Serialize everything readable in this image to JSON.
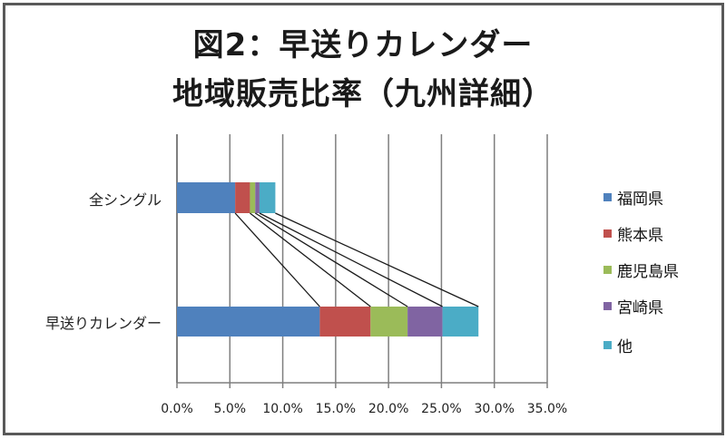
{
  "chart_data": {
    "type": "bar",
    "orientation": "horizontal",
    "stacked": true,
    "series_lines": true,
    "title": "図2：早送りカレンダー\n地域販売比率（九州詳細）",
    "title_lines": [
      "図2：早送りカレンダー",
      "地域販売比率（九州詳細）"
    ],
    "categories": [
      "全シングル",
      "早送りカレンダー"
    ],
    "series": [
      {
        "name": "福岡県",
        "color": "#4F81BD",
        "values": [
          5.5,
          13.5
        ]
      },
      {
        "name": "熊本県",
        "color": "#C0504D",
        "values": [
          1.4,
          4.8
        ]
      },
      {
        "name": "鹿児島県",
        "color": "#9BBB59",
        "values": [
          0.5,
          3.5
        ]
      },
      {
        "name": "宮崎県",
        "color": "#8064A2",
        "values": [
          0.4,
          3.3
        ]
      },
      {
        "name": "他",
        "color": "#4BACC6",
        "values": [
          1.5,
          3.4
        ]
      }
    ],
    "xlabel": "",
    "ylabel": "",
    "xlim": [
      0,
      35
    ],
    "x_ticks": [
      "0.0%",
      "5.0%",
      "10.0%",
      "15.0%",
      "20.0%",
      "25.0%",
      "30.0%",
      "35.0%"
    ],
    "grid": true,
    "legend_position": "right"
  }
}
